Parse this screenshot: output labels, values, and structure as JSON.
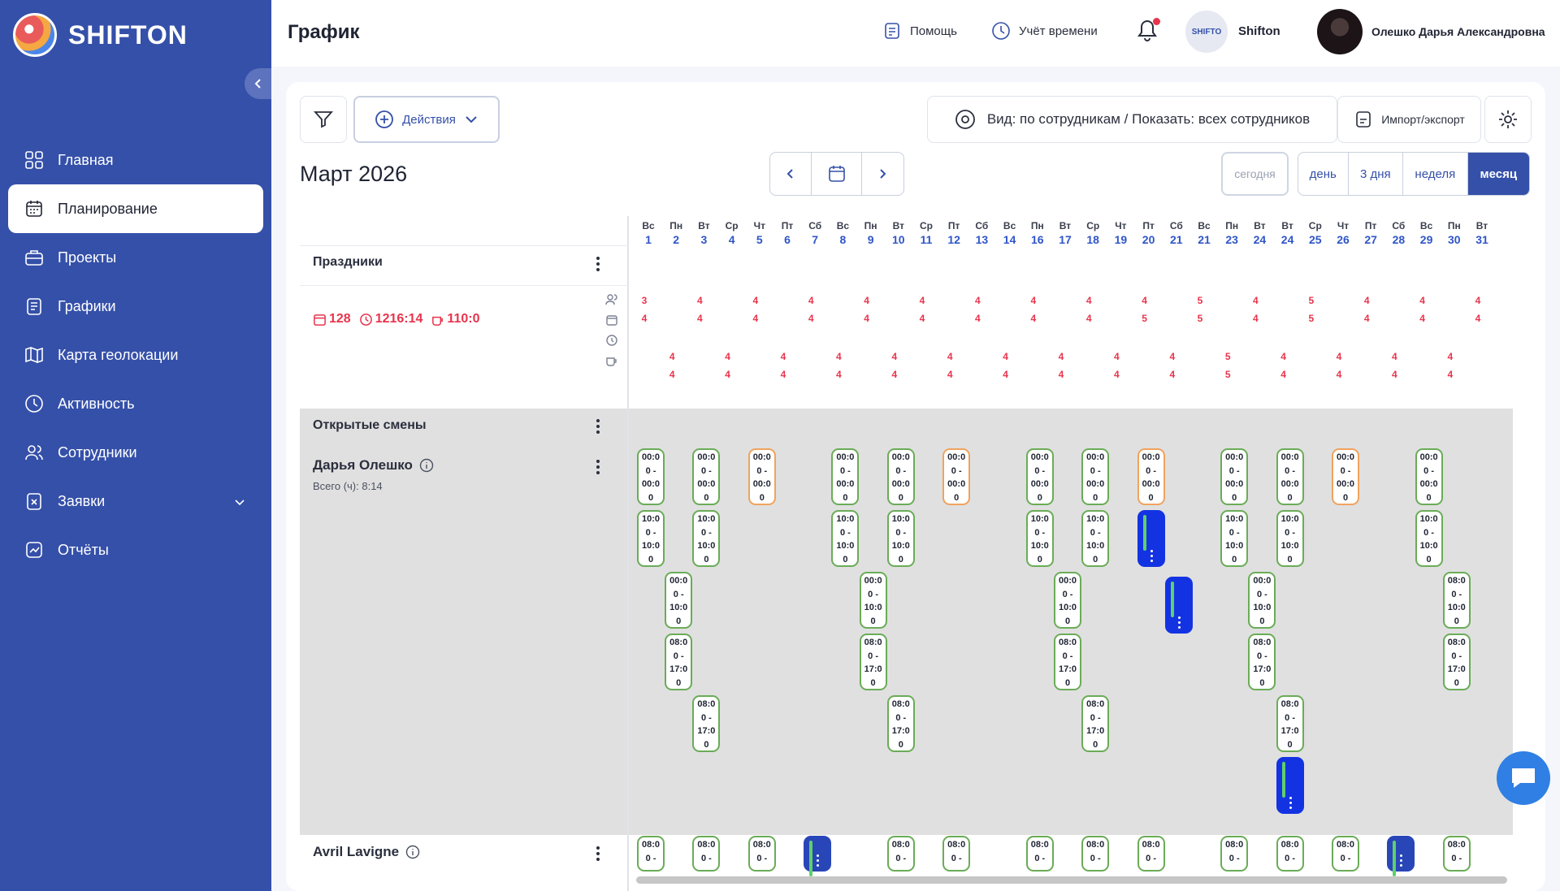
{
  "brand": {
    "name": "SHIFTON"
  },
  "sidebar": {
    "items": [
      {
        "label": "Главная",
        "icon": "grid-icon",
        "active": false
      },
      {
        "label": "Планирование",
        "icon": "calendar-icon",
        "active": true
      },
      {
        "label": "Проекты",
        "icon": "briefcase-icon",
        "active": false
      },
      {
        "label": "Графики",
        "icon": "schedule-icon",
        "active": false
      },
      {
        "label": "Карта геолокации",
        "icon": "map-icon",
        "active": false
      },
      {
        "label": "Активность",
        "icon": "clock-icon",
        "active": false
      },
      {
        "label": "Сотрудники",
        "icon": "users-icon",
        "active": false
      },
      {
        "label": "Заявки",
        "icon": "request-icon",
        "active": false,
        "has_submenu": true
      },
      {
        "label": "Отчёты",
        "icon": "report-icon",
        "active": false
      }
    ]
  },
  "header": {
    "title": "График",
    "help_label": "Помощь",
    "time_label": "Учёт времени",
    "company_name": "Shifton",
    "company_avatar_text": "SHIFTO",
    "user_name": "Олешко Дарья Александровна",
    "notification_dot_color": "#e8344c"
  },
  "toolbar": {
    "actions_label": "Действия",
    "view_label": "Вид: по сотрудникам / Показать: всех сотрудников",
    "import_export_label": "Импорт/экспорт"
  },
  "calendar": {
    "month_title": "Март 2026",
    "today_label": "сегодня",
    "view_modes": [
      "день",
      "3 дня",
      "неделя",
      "месяц"
    ],
    "active_view": "месяц",
    "days": [
      {
        "dn": "Вс",
        "dd": "1"
      },
      {
        "dn": "Пн",
        "dd": "2"
      },
      {
        "dn": "Вт",
        "dd": "3"
      },
      {
        "dn": "Ср",
        "dd": "4"
      },
      {
        "dn": "Чт",
        "dd": "5"
      },
      {
        "dn": "Пт",
        "dd": "6"
      },
      {
        "dn": "Сб",
        "dd": "7"
      },
      {
        "dn": "Вс",
        "dd": "8"
      },
      {
        "dn": "Пн",
        "dd": "9"
      },
      {
        "dn": "Вт",
        "dd": "10"
      },
      {
        "dn": "Ср",
        "dd": "11"
      },
      {
        "dn": "Пт",
        "dd": "12"
      },
      {
        "dn": "Сб",
        "dd": "13"
      },
      {
        "dn": "Вс",
        "dd": "14"
      },
      {
        "dn": "Пн",
        "dd": "16"
      },
      {
        "dn": "Вт",
        "dd": "17"
      },
      {
        "dn": "Ср",
        "dd": "18"
      },
      {
        "dn": "Чт",
        "dd": "19"
      },
      {
        "dn": "Пт",
        "dd": "20"
      },
      {
        "dn": "Сб",
        "dd": "21"
      },
      {
        "dn": "Вс",
        "dd": "21"
      },
      {
        "dn": "Пн",
        "dd": "23"
      },
      {
        "dn": "Вт",
        "dd": "24"
      },
      {
        "dn": "Вт",
        "dd": "24"
      },
      {
        "dn": "Ср",
        "dd": "25"
      },
      {
        "dn": "Чт",
        "dd": "26"
      },
      {
        "dn": "Пт",
        "dd": "27"
      },
      {
        "dn": "Сб",
        "dd": "28"
      },
      {
        "dn": "Вс",
        "dd": "29"
      },
      {
        "dn": "Пн",
        "dd": "30"
      },
      {
        "dn": "Вт",
        "dd": "31"
      }
    ]
  },
  "rows": {
    "holidays_label": "Праздники",
    "stats": {
      "shifts": "128",
      "hours": "1216:14",
      "breaks": "110:0"
    },
    "open_shifts_label": "Открытые смены",
    "employees": [
      {
        "name": "Дарья Олешко",
        "total": "Всего (ч): 8:14"
      },
      {
        "name": "Avril Lavigne"
      }
    ]
  },
  "counts": {
    "row1": [
      "3",
      "4",
      "4",
      "4",
      "4",
      "4",
      "4",
      "4",
      "4",
      "4",
      "5",
      "4",
      "5",
      "4",
      "4",
      "4"
    ],
    "row2": [
      "4",
      "4",
      "4",
      "4",
      "4",
      "4",
      "4",
      "4",
      "4",
      "5",
      "5",
      "4",
      "5",
      "4",
      "4",
      "4"
    ],
    "row3": [
      "4",
      "4",
      "4",
      "4",
      "4",
      "4",
      "4",
      "4",
      "4",
      "4",
      "5",
      "4",
      "4",
      "4",
      "4",
      "4"
    ],
    "row4": [
      "4",
      "4",
      "4",
      "4",
      "4",
      "4",
      "4",
      "4",
      "4",
      "4",
      "5",
      "4",
      "4",
      "4",
      "4",
      "4"
    ]
  },
  "shift_texts": {
    "midnight": "00:0\n0 -\n00:0\n0",
    "ten": "10:0\n0 -\n10:0\n0",
    "mid_ten": "00:0\n0 -\n10:0\n0",
    "eight": "08:0\n0 -\n17:0\n0",
    "eight_short": "08:0\n0 -",
    "eight_ten": "08:0\n0 -\n10:0\n0"
  },
  "colors": {
    "primary": "#3550a9",
    "shift_green": "#6aac57",
    "shift_orange": "#f0a35e",
    "shift_blue": "#1333e3",
    "alert_red": "#e8344c"
  }
}
